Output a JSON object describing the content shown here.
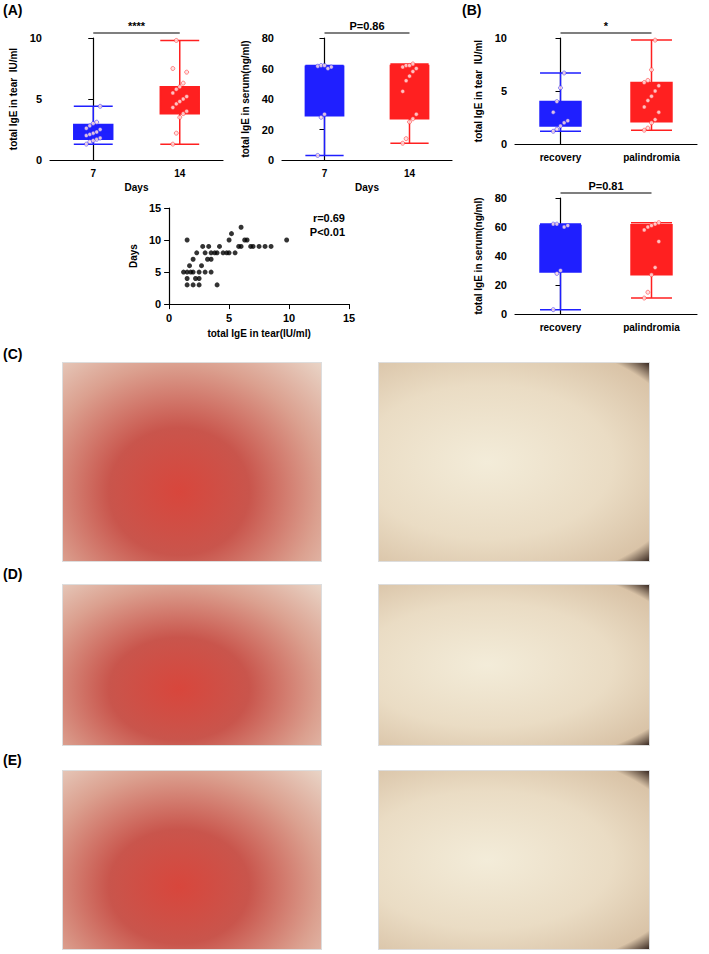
{
  "panel_labels": [
    "(A)",
    "(B)",
    "(C)",
    "(D)",
    "(E)"
  ],
  "chart_data": [
    {
      "type": "boxplot",
      "x_label": "Days",
      "y_label": "total IgE in tear  IU/ml",
      "categories": [
        "7",
        "14"
      ],
      "values": [
        [
          1.3,
          1.7,
          2.3,
          2.9,
          4.4
        ],
        [
          1.3,
          3.8,
          4.8,
          6.0,
          9.8
        ]
      ],
      "points": [
        [
          1.3,
          1.5,
          1.6,
          1.7,
          1.8,
          2.0,
          2.1,
          2.2,
          2.3,
          2.5,
          2.6,
          2.8,
          3.0,
          3.1,
          4.4
        ],
        [
          1.3,
          2.2,
          3.5,
          3.8,
          4.0,
          4.3,
          4.6,
          4.8,
          5.0,
          5.2,
          5.5,
          5.8,
          6.0,
          6.3,
          7.2,
          7.5,
          9.8
        ]
      ],
      "colors": [
        "#1f1fff",
        "#ff2020"
      ],
      "annotation": "****",
      "ylim": [
        0,
        10
      ],
      "yticks": [
        0,
        5,
        10
      ],
      "grid": false
    },
    {
      "type": "boxplot",
      "x_label": "Days",
      "y_label": "total IgE in serum(ng/ml)",
      "categories": [
        "7",
        "14"
      ],
      "values": [
        [
          3,
          29,
          60,
          61.5,
          62
        ],
        [
          11,
          27,
          55,
          62,
          63
        ]
      ],
      "points": [
        [
          3,
          28,
          30,
          60,
          61,
          61.5,
          62,
          62
        ],
        [
          11,
          14,
          25,
          27,
          30,
          45,
          52,
          55,
          58,
          60,
          61,
          62,
          62,
          63
        ]
      ],
      "colors": [
        "#1f1fff",
        "#ff2020"
      ],
      "annotation": "P=0.86",
      "ylim": [
        0,
        80
      ],
      "yticks": [
        0,
        20,
        40,
        60,
        80
      ],
      "grid": false
    },
    {
      "type": "scatter",
      "x_label": "total IgE in tear(IU/ml)",
      "y_label": "Days",
      "x": [
        1.2,
        1.5,
        1.5,
        1.5,
        1.5,
        1.7,
        1.8,
        2.0,
        2.0,
        2.0,
        2.2,
        2.3,
        2.5,
        2.5,
        2.5,
        2.7,
        2.8,
        3.0,
        3.0,
        3.2,
        3.3,
        3.5,
        3.5,
        3.5,
        3.8,
        4.0,
        4.0,
        4.2,
        4.5,
        4.8,
        5.0,
        5.0,
        5.2,
        5.5,
        5.8,
        6.0,
        6.0,
        6.3,
        6.5,
        6.8,
        7.0,
        7.5,
        8.0,
        8.5,
        9.8
      ],
      "values": [
        5,
        10,
        5,
        4,
        3,
        6,
        5,
        7,
        3,
        5,
        4,
        8,
        5,
        4,
        3,
        6,
        9,
        5,
        8,
        7,
        9,
        8,
        7,
        5,
        8,
        8,
        3,
        9,
        8,
        8,
        8,
        10,
        11,
        8,
        9,
        12,
        9,
        10,
        10,
        9,
        9,
        9,
        9,
        9,
        10
      ],
      "color": "#000000",
      "annotations": [
        "r=0.69",
        "P<0.01"
      ],
      "xlim": [
        0,
        15
      ],
      "xticks": [
        0,
        5,
        10,
        15
      ],
      "ylim": [
        0,
        15
      ],
      "yticks": [
        0,
        5,
        10,
        15
      ],
      "grid": false
    },
    {
      "type": "boxplot",
      "y_label": "total IgE in tear  IU/ml",
      "categories": [
        "recovery",
        "palindromia"
      ],
      "values": [
        [
          1.2,
          1.7,
          2.2,
          4.0,
          6.7
        ],
        [
          1.3,
          2.1,
          4.1,
          5.8,
          9.8
        ]
      ],
      "points": [
        [
          1.2,
          1.4,
          1.7,
          2.0,
          2.2,
          3.0,
          4.0,
          5.3,
          6.7
        ],
        [
          1.3,
          1.5,
          2.0,
          2.3,
          3.0,
          3.5,
          4.1,
          4.5,
          5.0,
          5.5,
          5.8,
          6.0,
          7.0,
          9.8
        ]
      ],
      "colors": [
        "#1f1fff",
        "#ff2020"
      ],
      "annotation": "*",
      "ylim": [
        0,
        10
      ],
      "yticks": [
        0,
        5,
        10
      ],
      "grid": false
    },
    {
      "type": "boxplot",
      "y_label": "total IgE in serum(ng/ml)",
      "categories": [
        "recovery",
        "palindromia"
      ],
      "values": [
        [
          3,
          29,
          60,
          61,
          62
        ],
        [
          11,
          27,
          58,
          61.5,
          63
        ]
      ],
      "points": [
        [
          3,
          28,
          30,
          60,
          61,
          62,
          62
        ],
        [
          11,
          15,
          27,
          32,
          50,
          58,
          60,
          61,
          62,
          63
        ]
      ],
      "colors": [
        "#1f1fff",
        "#ff2020"
      ],
      "annotation": "P=0.81",
      "ylim": [
        0,
        80
      ],
      "yticks": [
        0,
        20,
        40,
        60,
        80
      ],
      "grid": false
    }
  ]
}
